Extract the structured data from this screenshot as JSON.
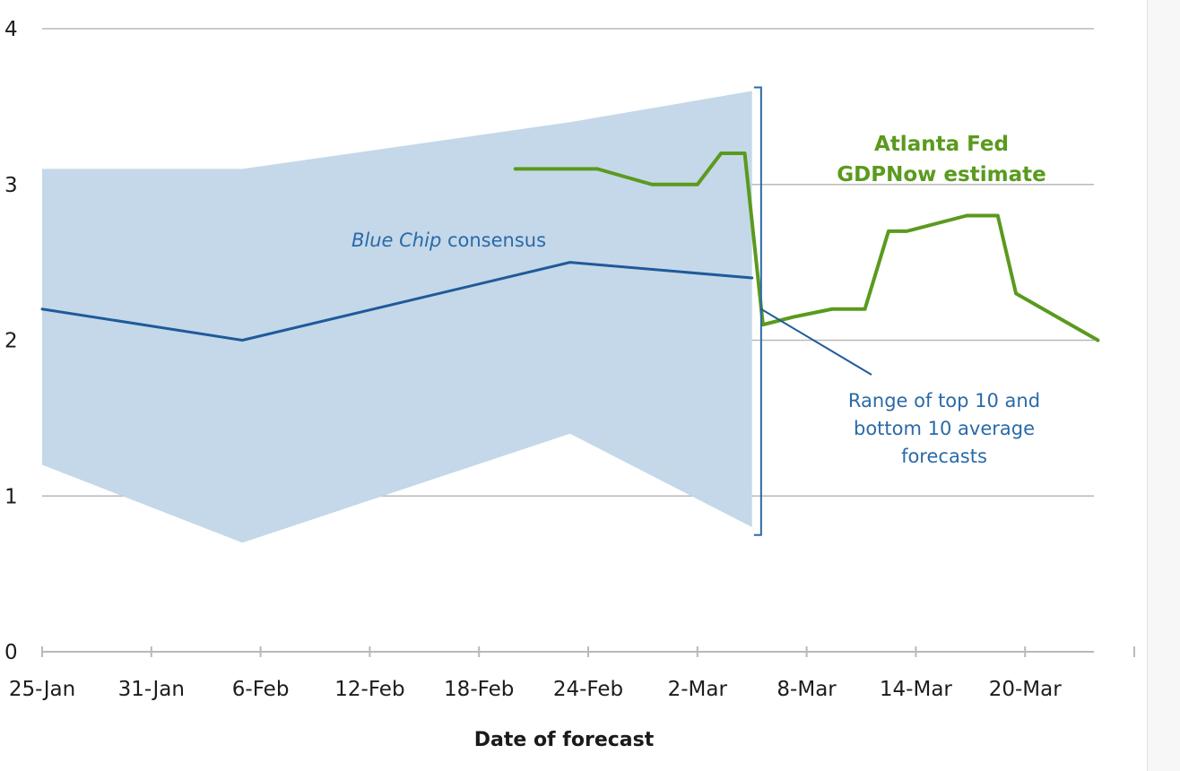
{
  "chart_data": {
    "type": "line",
    "title": "",
    "xlabel": "Date of forecast",
    "ylabel": "",
    "ylim": [
      0,
      4
    ],
    "yticks": [
      0,
      1,
      2,
      3,
      4
    ],
    "x_range_days": [
      0,
      59
    ],
    "xtick_labels": [
      "25-Jan",
      "31-Jan",
      "6-Feb",
      "12-Feb",
      "18-Feb",
      "24-Feb",
      "2-Mar",
      "8-Mar",
      "14-Mar",
      "20-Mar"
    ],
    "xtick_days": [
      0,
      6,
      12,
      18,
      24,
      30,
      36,
      42,
      48,
      54
    ],
    "grid": true,
    "colors": {
      "band": "#c4d8e9",
      "consensus": "#1f5a9a",
      "gdpnow": "#5a9a1e",
      "annotation_blue": "#2a6aa8",
      "annotation_green": "#5a9a1e",
      "grid": "#b9b9b9",
      "bracket": "#2a6aa8"
    },
    "band": {
      "name": "Range of top 10 and bottom 10 average forecasts",
      "upper": [
        {
          "x": 0,
          "y": 3.1
        },
        {
          "x": 11,
          "y": 3.1
        },
        {
          "x": 29,
          "y": 3.4
        },
        {
          "x": 39,
          "y": 3.6
        }
      ],
      "lower": [
        {
          "x": 0,
          "y": 1.2
        },
        {
          "x": 11,
          "y": 0.7
        },
        {
          "x": 29,
          "y": 1.4
        },
        {
          "x": 39,
          "y": 0.8
        }
      ]
    },
    "series": [
      {
        "name": "Blue Chip consensus",
        "values": [
          {
            "x": 0,
            "y": 2.2
          },
          {
            "x": 11,
            "y": 2.0
          },
          {
            "x": 29,
            "y": 2.5
          },
          {
            "x": 39,
            "y": 2.4
          }
        ]
      },
      {
        "name": "Atlanta Fed GDPNow estimate",
        "values": [
          {
            "x": 26,
            "y": 3.1
          },
          {
            "x": 30.5,
            "y": 3.1
          },
          {
            "x": 33.5,
            "y": 3.0
          },
          {
            "x": 36,
            "y": 3.0
          },
          {
            "x": 37.3,
            "y": 3.2
          },
          {
            "x": 38.6,
            "y": 3.2
          },
          {
            "x": 39.6,
            "y": 2.1
          },
          {
            "x": 41.3,
            "y": 2.15
          },
          {
            "x": 43.4,
            "y": 2.2
          },
          {
            "x": 45.2,
            "y": 2.2
          },
          {
            "x": 46.5,
            "y": 2.7
          },
          {
            "x": 47.5,
            "y": 2.7
          },
          {
            "x": 50.8,
            "y": 2.8
          },
          {
            "x": 52.5,
            "y": 2.8
          },
          {
            "x": 53.5,
            "y": 2.3
          },
          {
            "x": 58,
            "y": 2.0
          }
        ]
      }
    ],
    "annotations": {
      "consensus_label_italic": "Blue Chip",
      "consensus_label_rest": " consensus",
      "gdpnow_line1": "Atlanta Fed",
      "gdpnow_line2": "GDPNow estimate",
      "range_line1": "Range of top 10 and",
      "range_line2": "bottom 10 average",
      "range_line3": "forecasts"
    }
  }
}
